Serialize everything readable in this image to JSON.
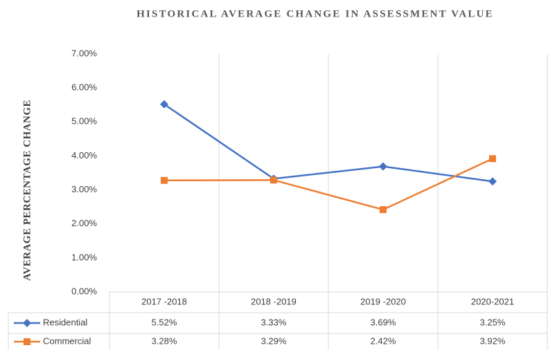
{
  "chart_data": {
    "type": "line",
    "title": "HISTORICAL AVERAGE CHANGE IN ASSESSMENT VALUE",
    "y_label": "AVERAGE PERCENTAGE CHANGE",
    "categories": [
      "2017 -2018",
      "2018 -2019",
      "2019 -2020",
      "2020-2021"
    ],
    "series": [
      {
        "name": "Residential",
        "color": "#4472c4",
        "marker": "diamond",
        "values": [
          5.52,
          3.33,
          3.69,
          3.25
        ],
        "value_labels": [
          "5.52%",
          "3.33%",
          "3.69%",
          "3.25%"
        ]
      },
      {
        "name": "Commercial",
        "color": "#ed7d31",
        "marker": "square",
        "values": [
          3.28,
          3.29,
          2.42,
          3.92
        ],
        "value_labels": [
          "3.28%",
          "3.29%",
          "2.42%",
          "3.92%"
        ]
      }
    ],
    "ylim": [
      0,
      7
    ],
    "yticks": [
      {
        "value": 0,
        "label": "0.00%"
      },
      {
        "value": 1,
        "label": "1.00%"
      },
      {
        "value": 2,
        "label": "2.00%"
      },
      {
        "value": 3,
        "label": "3.00%"
      },
      {
        "value": 4,
        "label": "4.00%"
      },
      {
        "value": 5,
        "label": "5.00%"
      },
      {
        "value": 6,
        "label": "6.00%"
      },
      {
        "value": 7,
        "label": "7.00%"
      }
    ]
  }
}
